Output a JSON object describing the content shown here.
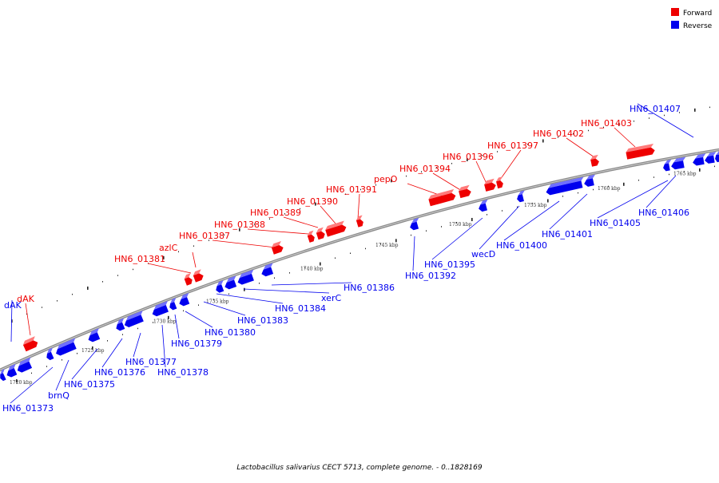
{
  "legend": {
    "forward_label": "Forward",
    "reverse_label": "Reverse",
    "forward_color": "#ee0000",
    "reverse_color": "#0000ee"
  },
  "caption": "Lactobacillus salivarius CECT 5713, complete genome. - 0..1828169",
  "axis_ticks": [
    "1720 kbp",
    "1725 kbp",
    "1730 kbp",
    "1735 kbp",
    "1740 kbp",
    "1745 kbp",
    "1750 kbp",
    "1755 kbp",
    "1760 kbp",
    "1765 kbp"
  ],
  "forward_labels": [
    "dAK",
    "HN6_01381",
    "azlC",
    "HN6_01387",
    "HN6_01388",
    "HN6_01389",
    "HN6_01390",
    "HN6_01391",
    "pepO",
    "HN6_01394",
    "HN6_01396",
    "HN6_01397",
    "HN6_01402",
    "HN6_01403"
  ],
  "reverse_labels": [
    "dAK",
    "HN6_01373",
    "brnQ",
    "HN6_01375",
    "HN6_01376",
    "HN6_01377",
    "HN6_01378",
    "HN6_01379",
    "HN6_01380",
    "HN6_01383",
    "HN6_01384",
    "xerC",
    "HN6_01386",
    "HN6_01392",
    "HN6_01395",
    "wecD",
    "HN6_01400",
    "HN6_01401",
    "HN6_01405",
    "HN6_01406",
    "HN6_01407"
  ]
}
